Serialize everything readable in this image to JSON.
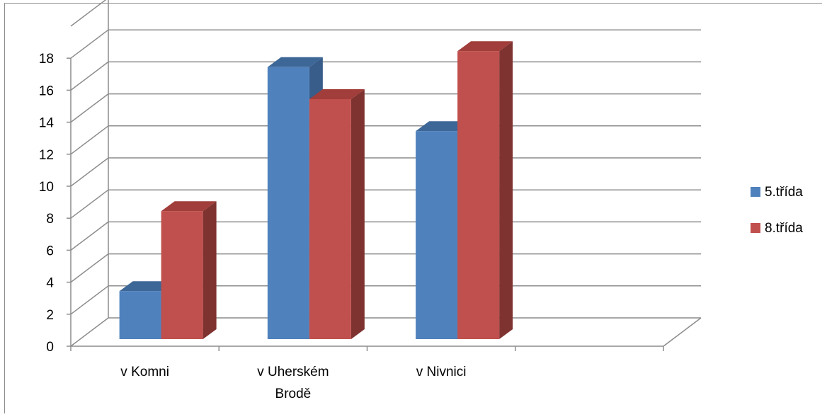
{
  "chart_data": {
    "type": "bar",
    "title": "",
    "xlabel": "",
    "ylabel": "",
    "categories": [
      [
        "v Komni"
      ],
      [
        "v Uherském",
        "Brodě"
      ],
      [
        "v Nivnici"
      ],
      [
        ""
      ]
    ],
    "series": [
      {
        "name": "5.třída",
        "values": [
          3,
          17,
          13,
          null
        ],
        "color": "#4f81bd",
        "side_color": "#385d8a",
        "top_color": "#3d6797"
      },
      {
        "name": "8.třída",
        "values": [
          8,
          15,
          18,
          null
        ],
        "color": "#c0504d",
        "side_color": "#7f3331",
        "top_color": "#a13d3a"
      }
    ],
    "ylim": [
      0,
      18
    ],
    "y_ticks": [
      0,
      2,
      4,
      6,
      8,
      10,
      12,
      14,
      16,
      18
    ],
    "grid": true,
    "three_d": true,
    "legend_position": "right",
    "gridline_color": "#8c8c8c"
  }
}
